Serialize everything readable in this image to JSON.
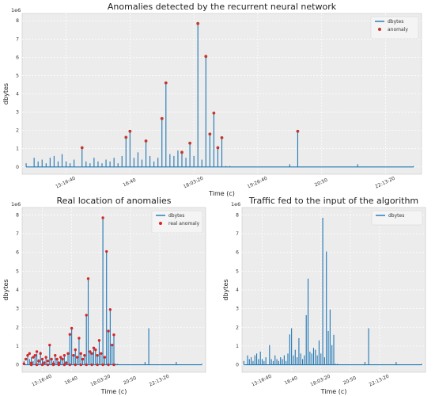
{
  "chart_data": [
    {
      "type": "line",
      "title": "Anomalies detected by the recurrent neural network",
      "xlabel": "Time (c)",
      "ylabel": "dbytes",
      "y_scale_label": "1e6",
      "ylim": [
        -0.4,
        8.4
      ],
      "y_ticks": [
        0,
        1,
        2,
        3,
        4,
        5,
        6,
        7,
        8
      ],
      "xlim": [
        0,
        100
      ],
      "x_ticks": [
        {
          "x": 11,
          "label": "15:16:40"
        },
        {
          "x": 27,
          "label": "16:40"
        },
        {
          "x": 43,
          "label": "18:03:20"
        },
        {
          "x": 59,
          "label": "19:26:40"
        },
        {
          "x": 75,
          "label": "20:50"
        },
        {
          "x": 91,
          "label": "22:13:20"
        }
      ],
      "grid": true,
      "legend_position": "top-right",
      "series": [
        {
          "name": "dbytes",
          "color": "#1f77b4",
          "kind": "spikes",
          "points": [
            [
              1,
              0.2
            ],
            [
              3,
              0.5
            ],
            [
              4,
              0.3
            ],
            [
              5,
              0.4
            ],
            [
              6,
              0.2
            ],
            [
              7,
              0.5
            ],
            [
              8,
              0.6
            ],
            [
              9,
              0.3
            ],
            [
              10,
              0.7
            ],
            [
              11,
              0.3
            ],
            [
              12,
              0.2
            ],
            [
              13,
              0.4
            ],
            [
              15,
              1.05
            ],
            [
              16,
              0.3
            ],
            [
              17,
              0.2
            ],
            [
              18,
              0.5
            ],
            [
              19,
              0.3
            ],
            [
              20,
              0.2
            ],
            [
              21,
              0.4
            ],
            [
              22,
              0.3
            ],
            [
              23,
              0.5
            ],
            [
              24,
              0.2
            ],
            [
              25,
              0.6
            ],
            [
              26,
              1.62
            ],
            [
              27,
              1.95
            ],
            [
              28,
              0.5
            ],
            [
              29,
              0.8
            ],
            [
              30,
              0.4
            ],
            [
              31,
              1.42
            ],
            [
              32,
              0.6
            ],
            [
              33,
              0.3
            ],
            [
              34,
              0.5
            ],
            [
              35,
              2.65
            ],
            [
              36,
              4.6
            ],
            [
              37,
              0.7
            ],
            [
              38,
              0.6
            ],
            [
              39,
              0.9
            ],
            [
              40,
              0.8
            ],
            [
              41,
              0.5
            ],
            [
              42,
              1.3
            ],
            [
              43,
              0.6
            ],
            [
              44,
              7.85
            ],
            [
              45,
              0.4
            ],
            [
              46,
              6.05
            ],
            [
              47,
              1.8
            ],
            [
              48,
              2.95
            ],
            [
              49,
              1.05
            ],
            [
              50,
              1.6
            ],
            [
              51,
              0.05
            ],
            [
              52,
              0.05
            ],
            [
              67,
              0.15
            ],
            [
              69,
              1.95
            ],
            [
              84,
              0.15
            ],
            [
              98,
              0.05
            ]
          ]
        },
        {
          "name": "anomaly",
          "color": "#c0392b",
          "kind": "markers",
          "points": [
            [
              15,
              1.05
            ],
            [
              26,
              1.62
            ],
            [
              27,
              1.95
            ],
            [
              31,
              1.42
            ],
            [
              35,
              2.65
            ],
            [
              36,
              4.6
            ],
            [
              40,
              0.8
            ],
            [
              42,
              1.3
            ],
            [
              44,
              7.85
            ],
            [
              46,
              6.05
            ],
            [
              47,
              1.8
            ],
            [
              48,
              2.95
            ],
            [
              49,
              1.05
            ],
            [
              50,
              1.6
            ],
            [
              69,
              1.95
            ]
          ]
        }
      ]
    },
    {
      "type": "line",
      "title": "Real location of anomalies",
      "xlabel": "Time (c)",
      "ylabel": "dbytes",
      "y_scale_label": "1e6",
      "ylim": [
        -0.4,
        8.4
      ],
      "y_ticks": [
        0,
        1,
        2,
        3,
        4,
        5,
        6,
        7,
        8
      ],
      "xlim": [
        0,
        100
      ],
      "x_ticks": [
        {
          "x": 11,
          "label": "15:16:40"
        },
        {
          "x": 27,
          "label": "16:40"
        },
        {
          "x": 43,
          "label": "18:03:20"
        },
        {
          "x": 59,
          "label": "20:50"
        },
        {
          "x": 75,
          "label": "22:13:20"
        }
      ],
      "grid": true,
      "legend_position": "top-right",
      "series": [
        {
          "name": "dbytes",
          "color": "#1f77b4",
          "kind": "spikes",
          "points": [
            [
              1,
              0.2
            ],
            [
              3,
              0.5
            ],
            [
              4,
              0.3
            ],
            [
              5,
              0.4
            ],
            [
              6,
              0.2
            ],
            [
              7,
              0.5
            ],
            [
              8,
              0.6
            ],
            [
              9,
              0.3
            ],
            [
              10,
              0.7
            ],
            [
              11,
              0.3
            ],
            [
              12,
              0.2
            ],
            [
              13,
              0.4
            ],
            [
              15,
              1.05
            ],
            [
              16,
              0.3
            ],
            [
              17,
              0.2
            ],
            [
              18,
              0.5
            ],
            [
              19,
              0.3
            ],
            [
              20,
              0.2
            ],
            [
              21,
              0.4
            ],
            [
              22,
              0.3
            ],
            [
              23,
              0.5
            ],
            [
              24,
              0.2
            ],
            [
              25,
              0.6
            ],
            [
              26,
              1.62
            ],
            [
              27,
              1.95
            ],
            [
              28,
              0.5
            ],
            [
              29,
              0.8
            ],
            [
              30,
              0.4
            ],
            [
              31,
              1.42
            ],
            [
              32,
              0.6
            ],
            [
              33,
              0.3
            ],
            [
              34,
              0.5
            ],
            [
              35,
              2.65
            ],
            [
              36,
              4.6
            ],
            [
              37,
              0.7
            ],
            [
              38,
              0.6
            ],
            [
              39,
              0.9
            ],
            [
              40,
              0.8
            ],
            [
              41,
              0.5
            ],
            [
              42,
              1.3
            ],
            [
              43,
              0.6
            ],
            [
              44,
              7.85
            ],
            [
              45,
              0.4
            ],
            [
              46,
              6.05
            ],
            [
              47,
              1.8
            ],
            [
              48,
              2.95
            ],
            [
              49,
              1.05
            ],
            [
              50,
              1.6
            ],
            [
              51,
              0.05
            ],
            [
              52,
              0.05
            ],
            [
              67,
              0.15
            ],
            [
              69,
              1.95
            ],
            [
              84,
              0.15
            ],
            [
              98,
              0.05
            ]
          ]
        },
        {
          "name": "real anomaly",
          "color": "#d62728",
          "kind": "markers",
          "points": [
            [
              1,
              0.05
            ],
            [
              2,
              0.3
            ],
            [
              3,
              0.5
            ],
            [
              4,
              0.6
            ],
            [
              5,
              0.1
            ],
            [
              6,
              0.4
            ],
            [
              7,
              0.5
            ],
            [
              8,
              0.7
            ],
            [
              9,
              0.2
            ],
            [
              10,
              0.6
            ],
            [
              11,
              0.3
            ],
            [
              12,
              0.1
            ],
            [
              13,
              0.4
            ],
            [
              14,
              0.2
            ],
            [
              15,
              1.05
            ],
            [
              16,
              0.3
            ],
            [
              17,
              0.05
            ],
            [
              18,
              0.5
            ],
            [
              19,
              0.3
            ],
            [
              20,
              0.1
            ],
            [
              21,
              0.4
            ],
            [
              22,
              0.3
            ],
            [
              23,
              0.5
            ],
            [
              24,
              0.1
            ],
            [
              25,
              0.6
            ],
            [
              26,
              1.62
            ],
            [
              27,
              1.95
            ],
            [
              28,
              0.5
            ],
            [
              29,
              0.8
            ],
            [
              30,
              0.4
            ],
            [
              31,
              1.42
            ],
            [
              32,
              0.6
            ],
            [
              33,
              0.3
            ],
            [
              34,
              0.5
            ],
            [
              35,
              2.65
            ],
            [
              36,
              4.6
            ],
            [
              37,
              0.7
            ],
            [
              38,
              0.6
            ],
            [
              39,
              0.9
            ],
            [
              40,
              0.8
            ],
            [
              41,
              0.5
            ],
            [
              42,
              1.3
            ],
            [
              43,
              0.6
            ],
            [
              44,
              7.85
            ],
            [
              45,
              0.4
            ],
            [
              46,
              6.05
            ],
            [
              47,
              1.8
            ],
            [
              48,
              2.95
            ],
            [
              49,
              1.05
            ],
            [
              50,
              1.6
            ],
            [
              5,
              0.0
            ],
            [
              8,
              0.0
            ],
            [
              11,
              0.0
            ],
            [
              14,
              0.0
            ],
            [
              17,
              0.0
            ],
            [
              20,
              0.0
            ],
            [
              23,
              0.0
            ],
            [
              26,
              0.0
            ],
            [
              29,
              0.0
            ],
            [
              32,
              0.0
            ],
            [
              35,
              0.0
            ],
            [
              38,
              0.0
            ],
            [
              41,
              0.0
            ],
            [
              44,
              0.0
            ],
            [
              47,
              0.0
            ],
            [
              50,
              0.0
            ]
          ]
        }
      ]
    },
    {
      "type": "line",
      "title": "Traffic fed to the input of the algorithm",
      "xlabel": "Time (c)",
      "ylabel": "dbytes",
      "y_scale_label": "1e6",
      "ylim": [
        -0.4,
        8.4
      ],
      "y_ticks": [
        0,
        1,
        2,
        3,
        4,
        5,
        6,
        7,
        8
      ],
      "xlim": [
        0,
        100
      ],
      "x_ticks": [
        {
          "x": 11,
          "label": "15:16:40"
        },
        {
          "x": 27,
          "label": "16:40"
        },
        {
          "x": 43,
          "label": "18:03:20"
        },
        {
          "x": 59,
          "label": "20:50"
        },
        {
          "x": 75,
          "label": "22:13:20"
        }
      ],
      "grid": true,
      "legend_position": "top-right",
      "series": [
        {
          "name": "dbytes",
          "color": "#1f77b4",
          "kind": "spikes",
          "points": [
            [
              1,
              0.2
            ],
            [
              3,
              0.5
            ],
            [
              4,
              0.3
            ],
            [
              5,
              0.4
            ],
            [
              6,
              0.2
            ],
            [
              7,
              0.5
            ],
            [
              8,
              0.6
            ],
            [
              9,
              0.3
            ],
            [
              10,
              0.7
            ],
            [
              11,
              0.3
            ],
            [
              12,
              0.2
            ],
            [
              13,
              0.4
            ],
            [
              15,
              1.05
            ],
            [
              16,
              0.3
            ],
            [
              17,
              0.2
            ],
            [
              18,
              0.5
            ],
            [
              19,
              0.3
            ],
            [
              20,
              0.2
            ],
            [
              21,
              0.4
            ],
            [
              22,
              0.3
            ],
            [
              23,
              0.5
            ],
            [
              24,
              0.2
            ],
            [
              25,
              0.6
            ],
            [
              26,
              1.62
            ],
            [
              27,
              1.95
            ],
            [
              28,
              0.5
            ],
            [
              29,
              0.8
            ],
            [
              30,
              0.4
            ],
            [
              31,
              1.42
            ],
            [
              32,
              0.6
            ],
            [
              33,
              0.3
            ],
            [
              34,
              0.5
            ],
            [
              35,
              2.65
            ],
            [
              36,
              4.6
            ],
            [
              37,
              0.7
            ],
            [
              38,
              0.6
            ],
            [
              39,
              0.9
            ],
            [
              40,
              0.8
            ],
            [
              41,
              0.5
            ],
            [
              42,
              1.3
            ],
            [
              43,
              0.6
            ],
            [
              44,
              7.85
            ],
            [
              45,
              0.4
            ],
            [
              46,
              6.05
            ],
            [
              47,
              1.8
            ],
            [
              48,
              2.95
            ],
            [
              49,
              1.05
            ],
            [
              50,
              1.6
            ],
            [
              51,
              0.05
            ],
            [
              52,
              0.05
            ],
            [
              67,
              0.15
            ],
            [
              69,
              1.95
            ],
            [
              84,
              0.15
            ],
            [
              98,
              0.05
            ]
          ]
        }
      ]
    }
  ]
}
